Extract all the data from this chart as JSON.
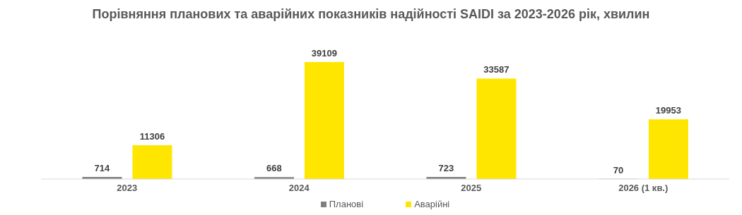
{
  "chart_data": {
    "type": "bar",
    "title": "Порівняння планових та аварійних показників надійності SAIDI за 2023-2026 рік, хвилин",
    "categories": [
      "2023",
      "2024",
      "2025",
      "2026 (1 кв.)"
    ],
    "series": [
      {
        "name": "Планові",
        "color": "#7f7f7f",
        "values": [
          714,
          668,
          723,
          70
        ]
      },
      {
        "name": "Аварійні",
        "color": "#ffe600",
        "values": [
          11306,
          39109,
          33587,
          19953
        ]
      }
    ],
    "data_labels": true,
    "legend": "bottom"
  }
}
